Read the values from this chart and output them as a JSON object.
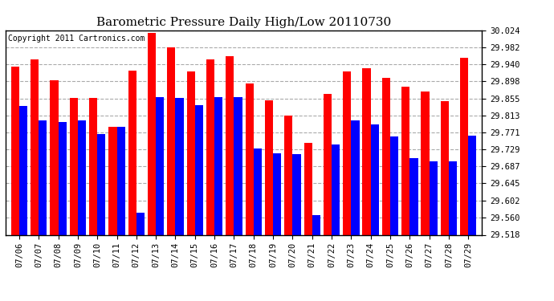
{
  "title": "Barometric Pressure Daily High/Low 20110730",
  "copyright": "Copyright 2011 Cartronics.com",
  "dates": [
    "07/06",
    "07/07",
    "07/08",
    "07/09",
    "07/10",
    "07/11",
    "07/12",
    "07/13",
    "07/14",
    "07/15",
    "07/16",
    "07/17",
    "07/18",
    "07/19",
    "07/20",
    "07/21",
    "07/22",
    "07/23",
    "07/24",
    "07/25",
    "07/26",
    "07/27",
    "07/28",
    "07/29"
  ],
  "high": [
    29.933,
    29.951,
    29.9,
    29.857,
    29.857,
    29.785,
    29.924,
    30.017,
    29.982,
    29.922,
    29.951,
    29.96,
    29.893,
    29.851,
    29.813,
    29.746,
    29.866,
    29.921,
    29.93,
    29.905,
    29.884,
    29.872,
    29.848,
    29.955
  ],
  "low": [
    29.836,
    29.8,
    29.797,
    29.8,
    29.768,
    29.785,
    29.572,
    29.858,
    29.857,
    29.838,
    29.858,
    29.858,
    29.731,
    29.719,
    29.718,
    29.566,
    29.741,
    29.8,
    29.79,
    29.762,
    29.707,
    29.7,
    29.7,
    29.763
  ],
  "ylim": [
    29.518,
    30.024
  ],
  "yticks": [
    29.518,
    29.56,
    29.602,
    29.645,
    29.687,
    29.729,
    29.771,
    29.813,
    29.855,
    29.898,
    29.94,
    29.982,
    30.024
  ],
  "high_color": "#ff0000",
  "low_color": "#0000ff",
  "bg_color": "#ffffff",
  "grid_color": "#aaaaaa",
  "title_fontsize": 11,
  "copyright_fontsize": 7,
  "tick_fontsize": 7.5
}
